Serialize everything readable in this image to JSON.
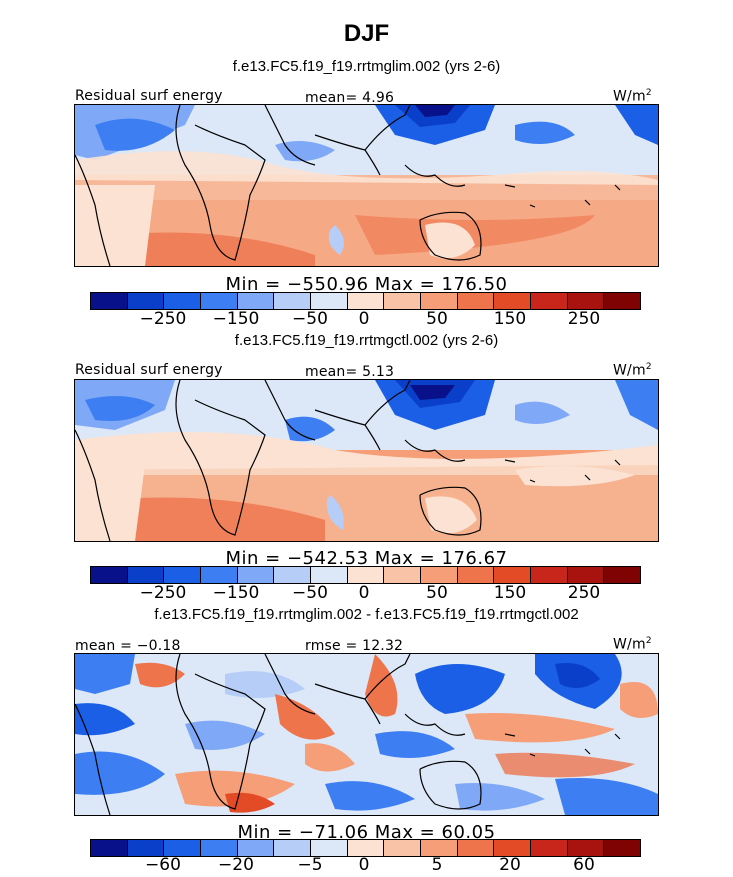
{
  "title": "DJF",
  "colors": [
    "#08108a",
    "#0a3fc9",
    "#1a5fe6",
    "#3d7ff2",
    "#7fa8f7",
    "#b5cdf7",
    "#dce8f8",
    "#fbe2d2",
    "#f8c3a6",
    "#f59e78",
    "#ee744c",
    "#e24b26",
    "#c8261a",
    "#a8120f",
    "#800303"
  ],
  "panels": [
    {
      "case_title": "f.e13.FC5.f19_f19.rrtmglim.002 (yrs 2-6)",
      "left_label": "Residual surf energy",
      "center_label": "mean=   4.96",
      "units": "W/m",
      "units_sup": "2",
      "min_max": "Min = −550.96 Max = 176.50",
      "ticks": [
        "−250",
        "−150",
        "−50",
        "0",
        "50",
        "150",
        "250"
      ]
    },
    {
      "case_title": "f.e13.FC5.f19_f19.rrtmgctl.002 (yrs 2-6)",
      "left_label": "Residual surf energy",
      "center_label": "mean=   5.13",
      "units": "W/m",
      "units_sup": "2",
      "min_max": "Min = −542.53 Max = 176.67",
      "ticks": [
        "−250",
        "−150",
        "−50",
        "0",
        "50",
        "150",
        "250"
      ]
    },
    {
      "case_title": "f.e13.FC5.f19_f19.rrtmglim.002 - f.e13.FC5.f19_f19.rrtmgctl.002",
      "left_label": "mean =  −0.18",
      "center_label": "rmse =   12.32",
      "units": "W/m",
      "units_sup": "2",
      "min_max": "Min = −71.06 Max =  60.05",
      "ticks": [
        "−60",
        "−20",
        "−5",
        "0",
        "5",
        "20",
        "60"
      ]
    }
  ]
}
